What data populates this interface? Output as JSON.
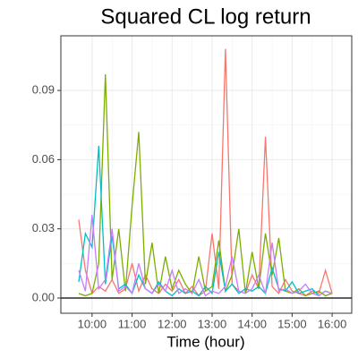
{
  "chart_data": {
    "type": "line",
    "title": "Squared CL log return",
    "x_label": "Time (hour)",
    "x": [
      9.667,
      9.833,
      10,
      10.167,
      10.333,
      10.5,
      10.667,
      10.833,
      11,
      11.167,
      11.333,
      11.5,
      11.667,
      11.833,
      12,
      12.167,
      12.333,
      12.5,
      12.667,
      12.833,
      13,
      13.167,
      13.333,
      13.5,
      13.667,
      13.833,
      14,
      14.167,
      14.333,
      14.5,
      14.667,
      14.833,
      15,
      15.167,
      15.333,
      15.5,
      15.667,
      15.833,
      16
    ],
    "series": [
      {
        "color": "#F8766D",
        "values": [
          0.034,
          0.012,
          0.002,
          0.005,
          0.003,
          0.008,
          0.002,
          0.004,
          0.015,
          0.003,
          0.01,
          0.004,
          0.002,
          0.006,
          0.003,
          0.008,
          0.002,
          0.005,
          0.001,
          0.003,
          0.028,
          0.004,
          0.108,
          0.006,
          0.003,
          0.002,
          0.01,
          0.004,
          0.07,
          0.005,
          0.002,
          0.008,
          0.003,
          0.002,
          0.001,
          0.003,
          0.002,
          0.012,
          0.002
        ]
      },
      {
        "color": "#7CAE00",
        "values": [
          0.002,
          0.001,
          0.002,
          0.015,
          0.097,
          0.008,
          0.03,
          0.003,
          0.04,
          0.072,
          0.006,
          0.024,
          0.002,
          0.018,
          0.004,
          0.012,
          0.006,
          0.002,
          0.018,
          0.003,
          0.005,
          0.025,
          0.003,
          0.01,
          0.03,
          0.002,
          0.02,
          0.004,
          0.028,
          0.01,
          0.026,
          0.003,
          0.002,
          0.004,
          0.001,
          0.002,
          0.003,
          0.001,
          0.002
        ]
      },
      {
        "color": "#00BFC4",
        "values": [
          0.007,
          0.028,
          0.022,
          0.066,
          0.006,
          0.027,
          0.004,
          0.006,
          0.002,
          0.01,
          0.004,
          0.002,
          0.007,
          0.003,
          0.001,
          0.004,
          0.002,
          0.003,
          0.001,
          0.005,
          0.002,
          0.02,
          0.003,
          0.006,
          0.002,
          0.004,
          0.003,
          0.005,
          0.002,
          0.013,
          0.004,
          0.003,
          0.007,
          0.002,
          0.003,
          0.004,
          0.001,
          0.003,
          0.002
        ]
      },
      {
        "color": "#C77CFF",
        "values": [
          0.012,
          0.003,
          0.036,
          0.004,
          0.008,
          0.03,
          0.003,
          0.005,
          0.002,
          0.015,
          0.004,
          0.002,
          0.006,
          0.003,
          0.012,
          0.002,
          0.004,
          0.002,
          0.008,
          0.001,
          0.003,
          0.002,
          0.005,
          0.018,
          0.003,
          0.002,
          0.004,
          0.01,
          0.002,
          0.024,
          0.003,
          0.004,
          0.002,
          0.003,
          0.006,
          0.002,
          0.001,
          0.003,
          0.002
        ]
      }
    ],
    "xlim": [
      9.22,
      16.49
    ],
    "xticks": [
      {
        "value": 10,
        "label": "10:00"
      },
      {
        "value": 11,
        "label": "11:00"
      },
      {
        "value": 12,
        "label": "12:00"
      },
      {
        "value": 13,
        "label": "13:00"
      },
      {
        "value": 14,
        "label": "14:00"
      },
      {
        "value": 15,
        "label": "15:00"
      },
      {
        "value": 16,
        "label": "16:00"
      }
    ],
    "ylim": [
      -0.0066,
      0.1137
    ],
    "yticks": [
      {
        "value": 0,
        "label": "0.00"
      },
      0.03,
      0.06,
      0.09
    ],
    "hline": 0,
    "grid": true
  }
}
